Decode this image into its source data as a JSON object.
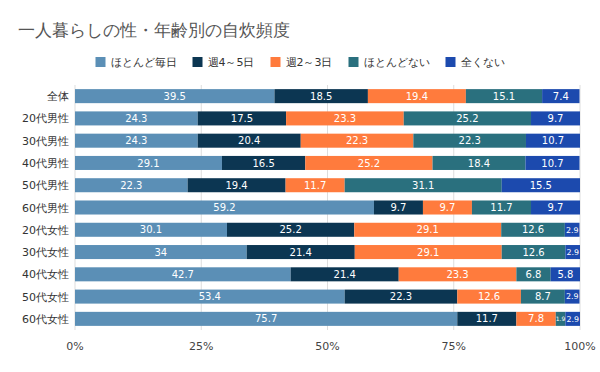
{
  "chart_data": {
    "type": "bar",
    "orientation": "horizontal",
    "stacked": true,
    "data_labels": true,
    "grid": true,
    "legend": "top",
    "title": "一人暮らしの性・年齢別の自炊頻度",
    "categories": [
      "全体",
      "20代男性",
      "30代男性",
      "40代男性",
      "50代男性",
      "60代男性",
      "20代女性",
      "30代女性",
      "40代女性",
      "50代女性",
      "60代女性"
    ],
    "xlim": [
      0,
      100
    ],
    "xticks": [
      {
        "value": 0,
        "label": "0%"
      },
      {
        "value": 25,
        "label": "25%"
      },
      {
        "value": 50,
        "label": "50%"
      },
      {
        "value": 75,
        "label": "75%"
      },
      {
        "value": 100,
        "label": "100%"
      }
    ],
    "series": [
      {
        "name": "ほとんど毎日",
        "color": "#5b8fb6",
        "values": [
          39.5,
          24.3,
          24.3,
          29.1,
          22.3,
          59.2,
          30.1,
          34,
          42.7,
          53.4,
          75.7
        ]
      },
      {
        "name": "週4～5日",
        "color": "#0c3652",
        "values": [
          18.5,
          17.5,
          20.4,
          16.5,
          19.4,
          9.7,
          25.2,
          21.4,
          21.4,
          22.3,
          11.7
        ]
      },
      {
        "name": "週2～3日",
        "color": "#ff7b3d",
        "values": [
          19.4,
          23.3,
          22.3,
          25.2,
          11.7,
          9.7,
          29.1,
          29.1,
          23.3,
          12.6,
          7.8
        ]
      },
      {
        "name": "ほとんどない",
        "color": "#2a707e",
        "values": [
          15.1,
          25.2,
          22.3,
          18.4,
          31.1,
          11.7,
          12.6,
          12.6,
          6.8,
          8.7,
          1.9
        ]
      },
      {
        "name": "全くない",
        "color": "#1c4aae",
        "values": [
          7.4,
          9.7,
          10.7,
          10.7,
          15.5,
          9.7,
          2.9,
          2.9,
          5.8,
          2.9,
          2.9
        ]
      }
    ]
  }
}
